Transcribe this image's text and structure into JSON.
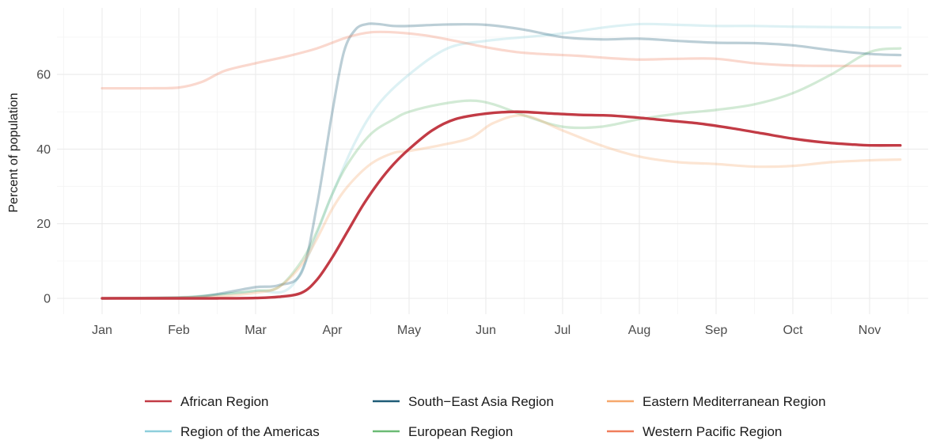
{
  "chart_data": {
    "type": "line",
    "title": "",
    "xlabel": "",
    "ylabel": "Percent of population",
    "x_categories": [
      "Jan",
      "Feb",
      "Mar",
      "Apr",
      "May",
      "Jun",
      "Jul",
      "Aug",
      "Sep",
      "Oct",
      "Nov"
    ],
    "xlim": [
      1.0,
      11.4
    ],
    "ylim": [
      0,
      75
    ],
    "y_ticks": [
      0,
      20,
      40,
      60
    ],
    "grid": true,
    "legend_position": "bottom",
    "series": [
      {
        "name": "African Region",
        "color": "#c23b45",
        "highlight": true,
        "x": [
          1,
          2,
          2.5,
          3,
          3.3,
          3.6,
          3.8,
          4.0,
          4.2,
          4.4,
          4.6,
          4.8,
          5.0,
          5.3,
          5.6,
          6.0,
          6.4,
          6.8,
          7.2,
          7.6,
          8.0,
          8.4,
          8.8,
          9.2,
          9.6,
          10.0,
          10.4,
          10.8,
          11.0,
          11.4
        ],
        "y": [
          0,
          0,
          0,
          0.1,
          0.4,
          1.5,
          5,
          11,
          18,
          25,
          31,
          36,
          40,
          45,
          48,
          49.5,
          50,
          49.6,
          49.2,
          49.0,
          48.4,
          47.6,
          46.8,
          45.6,
          44.2,
          42.8,
          41.8,
          41.2,
          41.0,
          41.0
        ]
      },
      {
        "name": "Region of the Americas",
        "color": "#8ecfdc",
        "highlight": false,
        "x": [
          1,
          2,
          2.5,
          3,
          3.5,
          4.0,
          4.3,
          4.6,
          5.0,
          5.5,
          6.0,
          6.5,
          7.0,
          7.5,
          8.0,
          8.5,
          9.0,
          9.5,
          10.0,
          10.5,
          11.0,
          11.4
        ],
        "y": [
          0,
          0.3,
          1,
          2,
          4,
          28,
          42,
          52,
          60,
          67,
          69,
          70,
          71,
          72.5,
          73.5,
          73.3,
          73,
          73,
          72.8,
          72.7,
          72.6,
          72.6
        ]
      },
      {
        "name": "European Region",
        "color": "#6bbb74",
        "highlight": false,
        "x": [
          1,
          2,
          2.5,
          3,
          3.3,
          3.6,
          3.8,
          4.0,
          4.2,
          4.5,
          4.8,
          5.0,
          5.4,
          5.8,
          6.1,
          6.5,
          7.0,
          7.5,
          8.0,
          8.5,
          9.0,
          9.5,
          10.0,
          10.5,
          11.0,
          11.4
        ],
        "y": [
          0,
          0.2,
          1,
          2,
          3,
          10,
          18,
          28,
          36,
          44,
          48,
          50,
          52,
          53,
          52,
          49,
          46,
          46,
          48,
          49.5,
          50.5,
          52,
          55,
          60,
          66,
          67
        ]
      },
      {
        "name": "South−East Asia Region",
        "color": "#1e5c77",
        "highlight": false,
        "x": [
          1,
          2,
          2.3,
          2.6,
          3.0,
          3.3,
          3.6,
          3.8,
          4.0,
          4.15,
          4.3,
          4.45,
          4.6,
          4.8,
          5.0,
          5.5,
          6.0,
          6.5,
          7.0,
          7.5,
          8.0,
          8.5,
          9.0,
          9.5,
          10.0,
          10.5,
          11.0,
          11.4
        ],
        "y": [
          0,
          0.2,
          0.5,
          1.5,
          3,
          3.5,
          7,
          25,
          50,
          66,
          72,
          73.5,
          73.5,
          73,
          73,
          73.4,
          73.3,
          72,
          70,
          69.4,
          69.6,
          69.0,
          68.5,
          68.4,
          67.8,
          66.5,
          65.5,
          65.2
        ]
      },
      {
        "name": "Eastern Mediterranean Region",
        "color": "#f6a86c",
        "highlight": false,
        "x": [
          1,
          2,
          2.5,
          3,
          3.3,
          3.6,
          3.8,
          4.0,
          4.2,
          4.5,
          4.8,
          5.0,
          5.4,
          5.8,
          6.1,
          6.5,
          7.0,
          7.5,
          8.0,
          8.5,
          9.0,
          9.5,
          10.0,
          10.5,
          11.0,
          11.4
        ],
        "y": [
          0,
          0.2,
          0.5,
          1.5,
          3,
          9,
          16,
          24,
          30,
          36,
          39,
          39.5,
          41,
          43,
          47,
          49,
          45,
          41,
          38,
          36.5,
          36,
          35.3,
          35.5,
          36.5,
          37,
          37.2
        ]
      },
      {
        "name": "Western Pacific Region",
        "color": "#f07e5c",
        "highlight": false,
        "x": [
          1,
          1.6,
          2.0,
          2.3,
          2.6,
          3.0,
          3.4,
          3.8,
          4.2,
          4.5,
          4.8,
          5.2,
          5.6,
          6.0,
          6.4,
          6.8,
          7.2,
          7.6,
          8.0,
          8.5,
          9.0,
          9.5,
          10.0,
          10.5,
          11.0,
          11.4
        ],
        "y": [
          56.3,
          56.3,
          56.5,
          58,
          61,
          63,
          64.8,
          67,
          70,
          71.3,
          71.3,
          70.5,
          69,
          67.3,
          66,
          65.4,
          65,
          64.4,
          64,
          64.2,
          64.2,
          63,
          62.4,
          62.3,
          62.3,
          62.3
        ]
      }
    ],
    "legend": {
      "ncol": 3,
      "entries": [
        {
          "name": "African Region",
          "color": "#c23b45"
        },
        {
          "name": "South−East Asia Region",
          "color": "#1e5c77"
        },
        {
          "name": "Eastern Mediterranean Region",
          "color": "#f6a86c"
        },
        {
          "name": "Region of the Americas",
          "color": "#8ecfdc"
        },
        {
          "name": "European Region",
          "color": "#6bbb74"
        },
        {
          "name": "Western Pacific Region",
          "color": "#f07e5c"
        }
      ]
    }
  }
}
